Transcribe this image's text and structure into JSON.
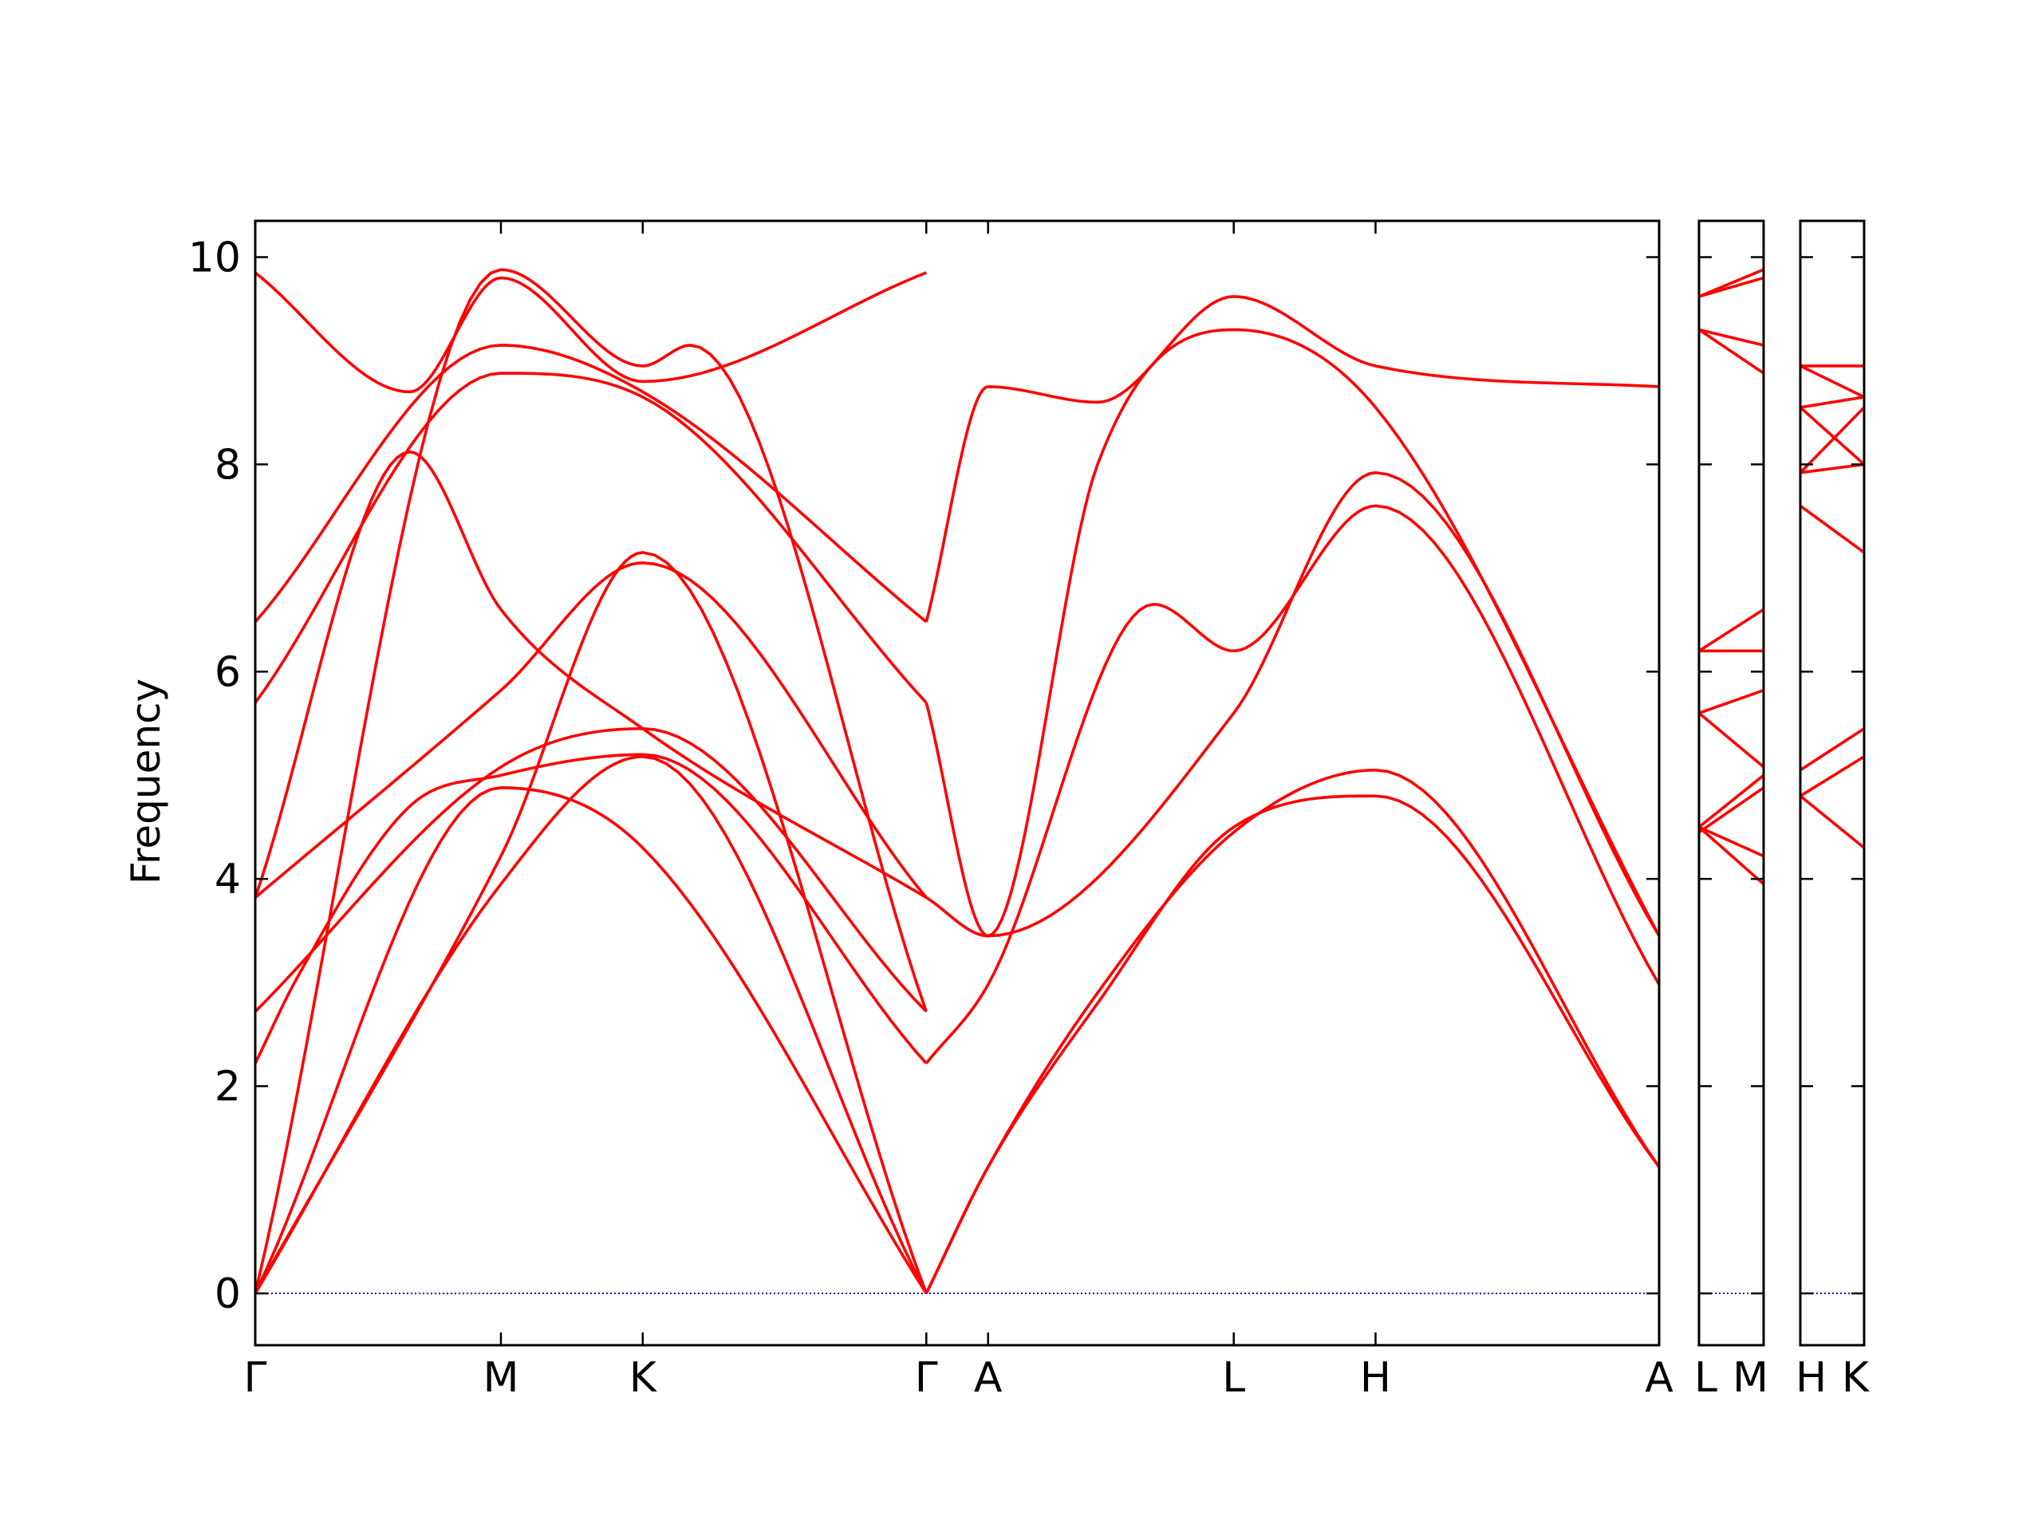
{
  "figure": {
    "ylabel": "Frequency"
  },
  "colors": {
    "bands": "#ff0000",
    "zero_line": "#0000cd",
    "axes": "#000000"
  },
  "chart_data": {
    "type": "line",
    "title": "",
    "xlabel": "",
    "ylabel": "Frequency",
    "ylim": [
      -0.5,
      10.35
    ],
    "yticks": [
      0,
      2,
      4,
      6,
      8,
      10
    ],
    "grid": false,
    "legend": "none",
    "panels": [
      {
        "name": "main",
        "xlim": [
          0,
          1
        ],
        "ticks": [
          {
            "x": 0.0,
            "label": "Γ"
          },
          {
            "x": 0.175,
            "label": "M"
          },
          {
            "x": 0.276,
            "label": "K"
          },
          {
            "x": 0.478,
            "label": "Γ"
          },
          {
            "x": 0.522,
            "label": "A"
          },
          {
            "x": 0.697,
            "label": "L"
          },
          {
            "x": 0.798,
            "label": "H"
          },
          {
            "x": 1.0,
            "label": "A"
          }
        ],
        "bands": [
          {
            "x": [
              0,
              0.175,
              0.276,
              0.478
            ],
            "y": [
              0,
              3.95,
              5.18,
              0
            ]
          },
          {
            "x": [
              0,
              0.175,
              0.276,
              0.478
            ],
            "y": [
              0,
              4.22,
              7.15,
              0
            ]
          },
          {
            "x": [
              0,
              0.175,
              0.276,
              0.478
            ],
            "y": [
              0,
              4.88,
              4.3,
              0
            ]
          },
          {
            "x": [
              0,
              0.03,
              0.11,
              0.175,
              0.276,
              0.478
            ],
            "y": [
              2.22,
              3.05,
              4.7,
              5.0,
              5.2,
              2.22
            ]
          },
          {
            "x": [
              0,
              0.175,
              0.276,
              0.478
            ],
            "y": [
              2.72,
              5.08,
              5.45,
              2.72
            ]
          },
          {
            "x": [
              0,
              0.175,
              0.276,
              0.478
            ],
            "y": [
              3.82,
              5.82,
              7.05,
              3.82
            ]
          },
          {
            "x": [
              0,
              0.11,
              0.175,
              0.276,
              0.478
            ],
            "y": [
              3.82,
              8.12,
              6.6,
              5.45,
              3.82
            ]
          },
          {
            "x": [
              0,
              0.175,
              0.276,
              0.478
            ],
            "y": [
              5.7,
              8.88,
              8.65,
              5.7
            ]
          },
          {
            "x": [
              0,
              0.175,
              0.276,
              0.478
            ],
            "y": [
              6.48,
              9.15,
              8.7,
              6.48
            ]
          },
          {
            "x": [
              0,
              0.11,
              0.175,
              0.276,
              0.478
            ],
            "y": [
              9.85,
              8.7,
              9.8,
              8.8,
              9.85
            ]
          },
          {
            "x": [
              0,
              0.175,
              0.276,
              0.31,
              0.478
            ],
            "y": [
              0,
              9.88,
              8.95,
              9.15,
              2.72
            ]
          },
          {
            "x": [
              0.478,
              0.522,
              0.6,
              0.697,
              0.798,
              1.0
            ],
            "y": [
              0,
              1.22,
              2.8,
              4.5,
              4.8,
              1.22
            ]
          },
          {
            "x": [
              0.478,
              0.522,
              0.6,
              0.697,
              0.798,
              1.0
            ],
            "y": [
              0,
              1.22,
              2.9,
              4.45,
              5.05,
              1.22
            ]
          },
          {
            "x": [
              0.478,
              0.522,
              0.64,
              0.697,
              0.798,
              1.0
            ],
            "y": [
              2.22,
              2.98,
              6.65,
              6.2,
              7.6,
              2.98
            ]
          },
          {
            "x": [
              0.478,
              0.522,
              0.697,
              0.798,
              1.0
            ],
            "y": [
              3.82,
              3.45,
              5.6,
              7.92,
              3.45
            ]
          },
          {
            "x": [
              0.478,
              0.522,
              0.6,
              0.697,
              0.798,
              1.0
            ],
            "y": [
              5.7,
              3.45,
              8.0,
              9.3,
              8.55,
              3.45
            ]
          },
          {
            "x": [
              0.478,
              0.522,
              0.6,
              0.697,
              0.798,
              1.0
            ],
            "y": [
              6.48,
              8.75,
              8.6,
              9.62,
              8.95,
              8.75
            ]
          }
        ]
      },
      {
        "name": "L-M",
        "xlim": [
          0,
          1
        ],
        "ticks": [
          {
            "x": 0.0,
            "label": "L"
          },
          {
            "x": 1.0,
            "label": "M"
          }
        ],
        "bands": [
          {
            "x": [
              0,
              1
            ],
            "y": [
              4.5,
              3.95
            ]
          },
          {
            "x": [
              0,
              1
            ],
            "y": [
              4.5,
              4.22
            ]
          },
          {
            "x": [
              0,
              1
            ],
            "y": [
              4.45,
              4.88
            ]
          },
          {
            "x": [
              0,
              1
            ],
            "y": [
              4.5,
              5.0
            ]
          },
          {
            "x": [
              0,
              1
            ],
            "y": [
              5.6,
              5.08
            ]
          },
          {
            "x": [
              0,
              1
            ],
            "y": [
              5.6,
              5.82
            ]
          },
          {
            "x": [
              0,
              1
            ],
            "y": [
              6.2,
              6.2
            ]
          },
          {
            "x": [
              0,
              1
            ],
            "y": [
              6.2,
              6.6
            ]
          },
          {
            "x": [
              0,
              1
            ],
            "y": [
              9.3,
              8.88
            ]
          },
          {
            "x": [
              0,
              1
            ],
            "y": [
              9.3,
              9.15
            ]
          },
          {
            "x": [
              0,
              1
            ],
            "y": [
              9.62,
              9.8
            ]
          },
          {
            "x": [
              0,
              1
            ],
            "y": [
              9.62,
              9.88
            ]
          }
        ]
      },
      {
        "name": "H-K",
        "xlim": [
          0,
          1
        ],
        "ticks": [
          {
            "x": 0.0,
            "label": "H"
          },
          {
            "x": 1.0,
            "label": "K"
          }
        ],
        "bands": [
          {
            "x": [
              0,
              1
            ],
            "y": [
              4.8,
              4.3
            ]
          },
          {
            "x": [
              0,
              1
            ],
            "y": [
              4.8,
              5.18
            ]
          },
          {
            "x": [
              0,
              1
            ],
            "y": [
              5.05,
              5.45
            ]
          },
          {
            "x": [
              0,
              1
            ],
            "y": [
              7.6,
              7.15
            ]
          },
          {
            "x": [
              0,
              1
            ],
            "y": [
              7.92,
              8.0
            ]
          },
          {
            "x": [
              0,
              1
            ],
            "y": [
              8.55,
              8.0
            ]
          },
          {
            "x": [
              0,
              1
            ],
            "y": [
              8.55,
              8.65
            ]
          },
          {
            "x": [
              0,
              1
            ],
            "y": [
              8.95,
              8.65
            ]
          },
          {
            "x": [
              0,
              1
            ],
            "y": [
              8.95,
              8.95
            ]
          },
          {
            "x": [
              0,
              1
            ],
            "y": [
              7.92,
              8.55
            ]
          }
        ]
      }
    ]
  }
}
